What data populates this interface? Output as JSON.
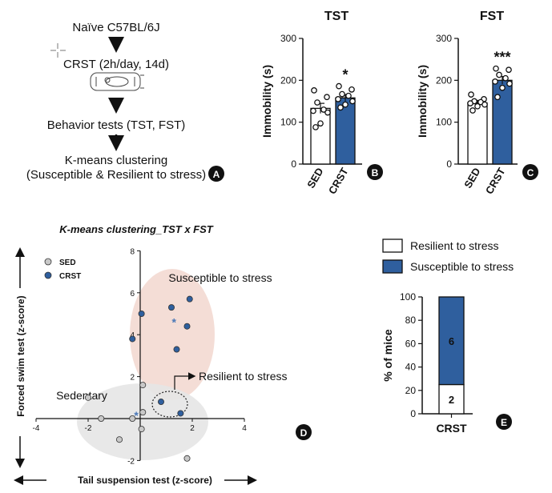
{
  "panelA": {
    "steps": [
      "Naïve C57BL/6J",
      "CRST (2h/day, 14d)",
      "Behavior tests (TST, FST)",
      "K-means clustering",
      "(Susceptible & Resilient to stress)"
    ],
    "label": "A"
  },
  "panelB": {
    "title": "TST",
    "label": "B"
  },
  "panelC": {
    "title": "FST",
    "label": "C"
  },
  "panelD": {
    "title": "K-means clustering_TST x FST",
    "label": "D",
    "annotations": {
      "susceptible": "Susceptible to stress",
      "resilient": "Resilient to stress",
      "sedentary": "Sedentary"
    }
  },
  "panelE": {
    "label": "E"
  },
  "colors": {
    "sed": "#c8c8c8",
    "crst": "#2f5f9e",
    "susceptible_ellipse": "#f2d6cf",
    "sedentary_ellipse": "#e6e6e6"
  },
  "chart_data": [
    {
      "id": "tst",
      "type": "bar",
      "title": "TST",
      "ylabel": "Immobility (s)",
      "categories": [
        "SED",
        "CRST"
      ],
      "values": [
        133,
        158
      ],
      "errors": [
        12,
        8
      ],
      "ylim": [
        0,
        300
      ],
      "yticks": [
        0,
        100,
        200,
        300
      ],
      "points": [
        [
          176,
          160,
          147,
          130,
          127,
          123,
          97,
          88
        ],
        [
          186,
          178,
          167,
          163,
          155,
          150,
          142,
          135
        ]
      ],
      "significance": [
        "",
        "*"
      ]
    },
    {
      "id": "fst",
      "type": "bar",
      "title": "FST",
      "ylabel": "Immobility (s)",
      "categories": [
        "SED",
        "CRST"
      ],
      "values": [
        146,
        200
      ],
      "errors": [
        6,
        9
      ],
      "ylim": [
        0,
        300
      ],
      "yticks": [
        0,
        100,
        200,
        300
      ],
      "points": [
        [
          166,
          155,
          150,
          148,
          145,
          142,
          138,
          128
        ],
        [
          228,
          225,
          213,
          205,
          197,
          192,
          182,
          160
        ]
      ],
      "significance": [
        "",
        "***"
      ]
    },
    {
      "id": "kmeans",
      "type": "scatter",
      "title": "K-means clustering_TST x FST",
      "xlabel": "Tail suspension test (z-score)",
      "ylabel": "Forced swim test (z-score)",
      "xlim": [
        -4,
        4
      ],
      "ylim": [
        -2,
        8
      ],
      "xticks": [
        -4,
        -2,
        2,
        4
      ],
      "yticks": [
        -2,
        2,
        4,
        6,
        8
      ],
      "legend": [
        "SED",
        "CRST"
      ],
      "legend_position": "top-left",
      "series": [
        {
          "name": "SED",
          "points": [
            [
              -2.0,
              1.0
            ],
            [
              -1.5,
              0.0
            ],
            [
              -0.8,
              -1.0
            ],
            [
              -0.3,
              0.0
            ],
            [
              0.05,
              -0.5
            ],
            [
              0.1,
              1.6
            ],
            [
              0.1,
              0.3
            ],
            [
              1.8,
              -1.9
            ]
          ]
        },
        {
          "name": "CRST",
          "points": [
            [
              -0.3,
              3.8
            ],
            [
              0.05,
              5.0
            ],
            [
              1.2,
              5.3
            ],
            [
              1.4,
              3.3
            ],
            [
              1.8,
              4.4
            ],
            [
              1.9,
              5.7
            ],
            [
              0.8,
              0.8
            ],
            [
              1.55,
              0.25
            ]
          ]
        }
      ],
      "centroids": [
        [
          -0.15,
          0.15
        ],
        [
          1.3,
          4.6
        ]
      ]
    },
    {
      "id": "proportion",
      "type": "bar",
      "stacked": true,
      "categories": [
        "CRST"
      ],
      "ylabel": "% of mice",
      "ylim": [
        0,
        100
      ],
      "yticks": [
        0,
        20,
        40,
        60,
        80,
        100
      ],
      "series": [
        {
          "name": "Resilient to stress",
          "values": [
            25
          ],
          "count": "2"
        },
        {
          "name": "Susceptible to stress",
          "values": [
            75
          ],
          "count": "6"
        }
      ]
    }
  ]
}
